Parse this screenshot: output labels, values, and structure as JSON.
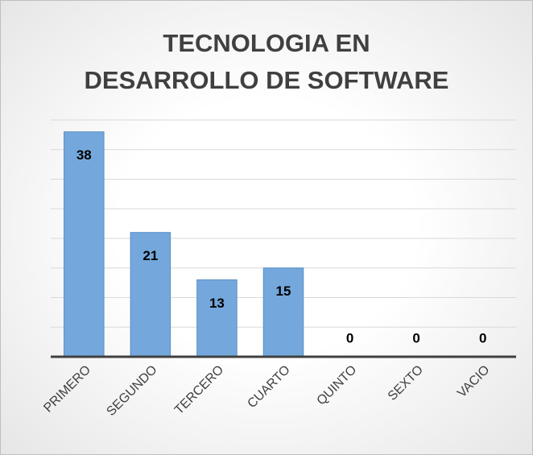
{
  "chart_data": {
    "type": "bar",
    "title": "TECNOLOGIA EN DESARROLLO DE SOFTWARE",
    "categories": [
      "PRIMERO",
      "SEGUNDO",
      "TERCERO",
      "CUARTO",
      "QUINTO",
      "SEXTO",
      "VACIO"
    ],
    "values": [
      38,
      21,
      13,
      15,
      0,
      0,
      0
    ],
    "color": "#74a8dc",
    "ylim": [
      0,
      40
    ],
    "yticks": [
      0,
      5,
      10,
      15,
      20,
      25,
      30,
      35,
      40
    ],
    "grid": true
  }
}
